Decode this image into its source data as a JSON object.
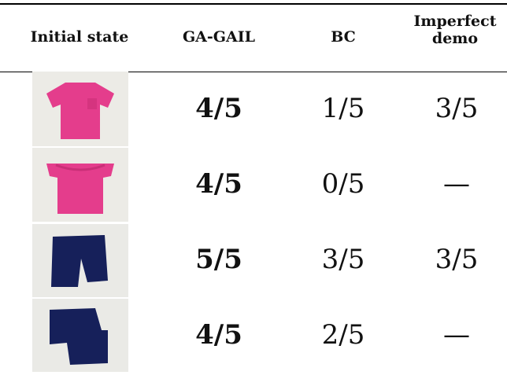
{
  "table": {
    "header": [
      "Initial state",
      "GA-GAIL",
      "BC",
      "Imperfect demo"
    ],
    "rows": [
      [
        "4/5",
        "1/5",
        "3/5"
      ],
      [
        "4/5",
        "0/5",
        "—"
      ],
      [
        "5/5",
        "3/5",
        "3/5"
      ],
      [
        "4/5",
        "2/5",
        "—"
      ]
    ]
  }
}
